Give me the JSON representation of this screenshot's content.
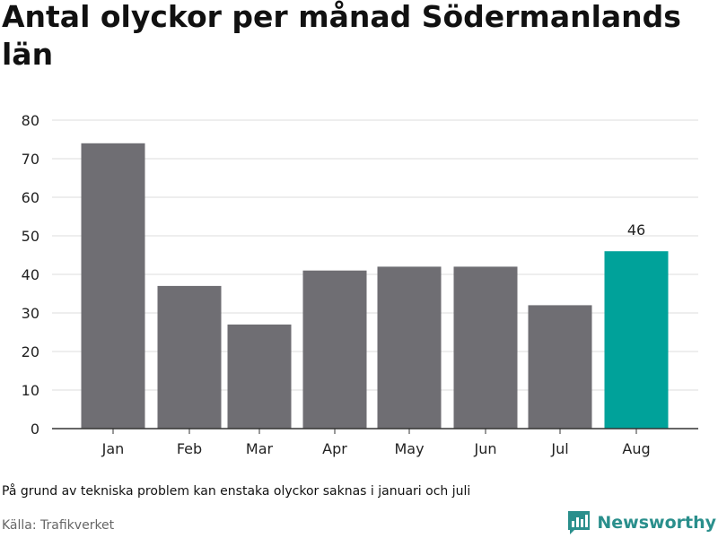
{
  "title": "Antal olyckor per månad Södermanlands län",
  "note": "På grund av tekniska problem kan enstaka olyckor saknas i januari och juli",
  "source": "Källa: Trafikverket",
  "brand": {
    "name": "Newsworthy",
    "logo_icon": "bar-chart-speech-bubble-icon"
  },
  "colors": {
    "bar": "#6f6e73",
    "highlight": "#00a29a",
    "grid": "#dddddd",
    "axis": "#333333",
    "brand": "#2a8f8c"
  },
  "chart_data": {
    "type": "bar",
    "categories": [
      "Jan",
      "Feb",
      "Mar",
      "Apr",
      "May",
      "Jun",
      "Jul",
      "Aug"
    ],
    "values": [
      74,
      37,
      27,
      41,
      42,
      42,
      32,
      46
    ],
    "highlight_index": 7,
    "data_labels": [
      {
        "index": 7,
        "text": "46"
      }
    ],
    "title": "Antal olyckor per månad Södermanlands län",
    "xlabel": "",
    "ylabel": "",
    "ylim": [
      0,
      80
    ],
    "yticks": [
      0,
      10,
      20,
      30,
      40,
      50,
      60,
      70,
      80
    ],
    "grid": true,
    "legend": "none"
  }
}
